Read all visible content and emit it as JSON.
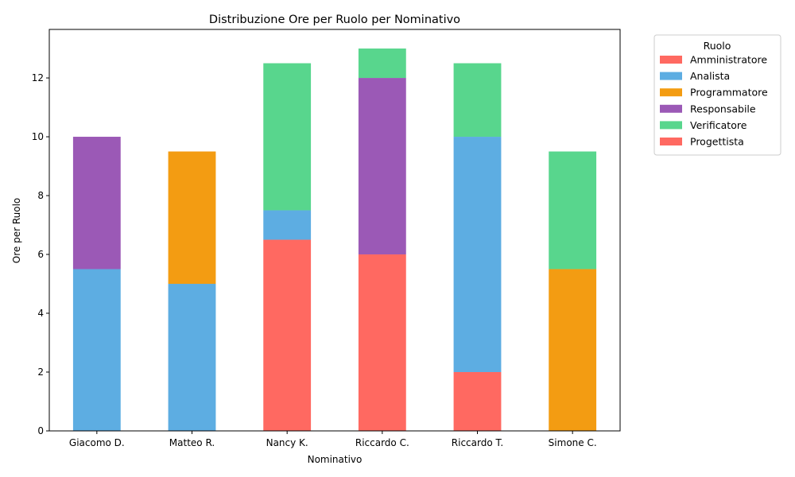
{
  "chart_data": {
    "type": "bar",
    "stacked": true,
    "title": "Distribuzione Ore per Ruolo per Nominativo",
    "xlabel": "Nominativo",
    "ylabel": "Ore per Ruolo",
    "ylim": [
      0,
      13.65
    ],
    "yticks": [
      0,
      2,
      4,
      6,
      8,
      10,
      12
    ],
    "grid": false,
    "legend": {
      "title": "Ruolo",
      "placement": "outside-top-right"
    },
    "categories": [
      "Giacomo D.",
      "Matteo R.",
      "Nancy K.",
      "Riccardo C.",
      "Riccardo T.",
      "Simone C."
    ],
    "series": [
      {
        "name": "Amministratore",
        "color": "#ff6961",
        "values": [
          0,
          0,
          6.5,
          6,
          2,
          0
        ]
      },
      {
        "name": "Analista",
        "color": "#5dade2",
        "values": [
          5.5,
          5,
          1,
          0,
          8,
          0
        ]
      },
      {
        "name": "Programmatore",
        "color": "#f39c12",
        "values": [
          0,
          4.5,
          0,
          0,
          0,
          5.5
        ]
      },
      {
        "name": "Responsabile",
        "color": "#9b59b6",
        "values": [
          4.5,
          0,
          0,
          6,
          0,
          0
        ]
      },
      {
        "name": "Verificatore",
        "color": "#58d68d",
        "values": [
          0,
          0,
          5,
          1,
          2.5,
          4
        ]
      },
      {
        "name": "Progettista",
        "color": "#ff6961",
        "values": [
          0,
          0,
          0,
          0,
          0,
          0
        ]
      }
    ]
  }
}
